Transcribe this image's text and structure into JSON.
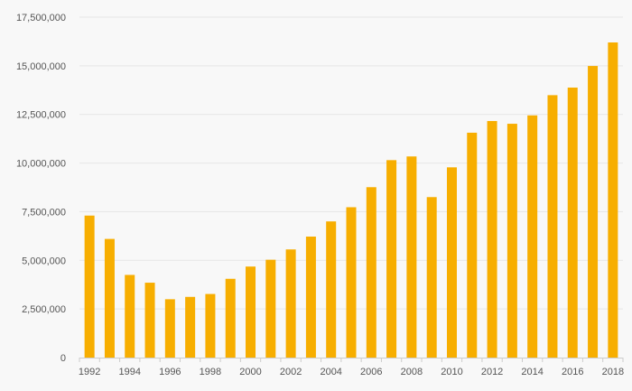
{
  "colors": {
    "background": "#f8f8f8",
    "bar": "#f7ae00",
    "grid": "#e6e6e6",
    "text": "#555555"
  },
  "chart_data": {
    "type": "bar",
    "categories": [
      "1992",
      "1993",
      "1994",
      "1995",
      "1996",
      "1997",
      "1998",
      "1999",
      "2000",
      "2001",
      "2002",
      "2003",
      "2004",
      "2005",
      "2006",
      "2007",
      "2008",
      "2009",
      "2010",
      "2011",
      "2012",
      "2013",
      "2014",
      "2015",
      "2016",
      "2017",
      "2018"
    ],
    "values": [
      7300000,
      6100000,
      4250000,
      3850000,
      3000000,
      3120000,
      3270000,
      4050000,
      4680000,
      5030000,
      5560000,
      6220000,
      7000000,
      7730000,
      8760000,
      10150000,
      10340000,
      8250000,
      9780000,
      11560000,
      12160000,
      12020000,
      12450000,
      13490000,
      13880000,
      14990000,
      16200000
    ],
    "x_tick_labels": [
      "1992",
      "1994",
      "1996",
      "1998",
      "2000",
      "2002",
      "2004",
      "2006",
      "2008",
      "2010",
      "2012",
      "2014",
      "2016",
      "2018"
    ],
    "y_ticks": [
      0,
      2500000,
      5000000,
      7500000,
      10000000,
      12500000,
      15000000,
      17500000
    ],
    "y_tick_labels": [
      "0",
      "2,500,000",
      "5,000,000",
      "7,500,000",
      "10,000,000",
      "12,500,000",
      "15,000,000",
      "17,500,000"
    ],
    "ylim": [
      0,
      17500000
    ],
    "grid": true,
    "legend": "none",
    "title": "",
    "xlabel": "",
    "ylabel": ""
  }
}
